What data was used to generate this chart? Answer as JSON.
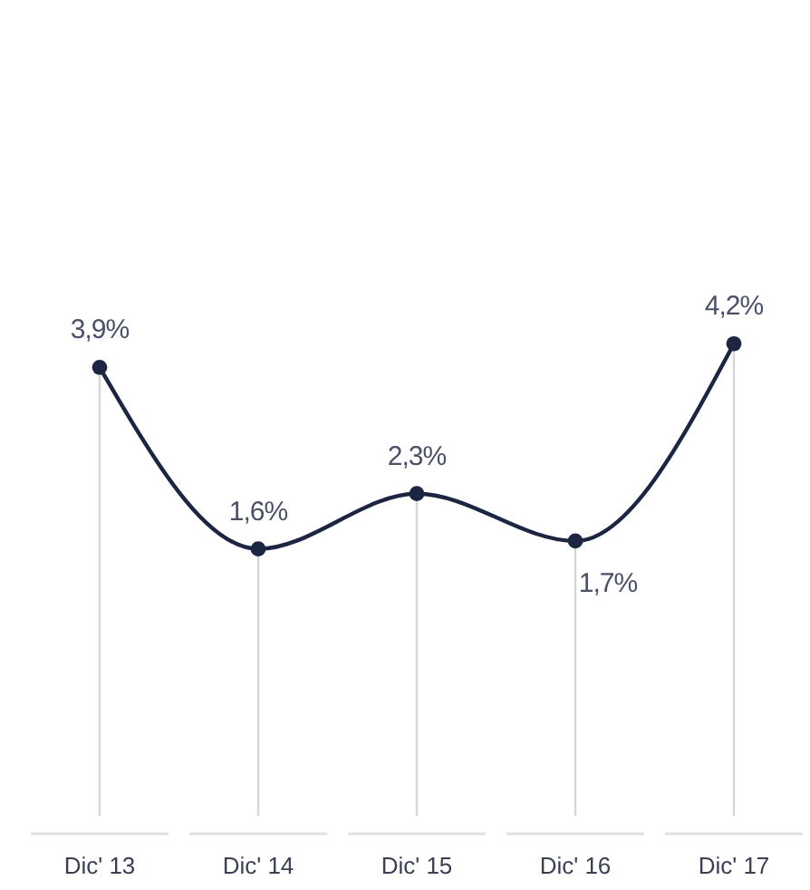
{
  "chart_data": {
    "type": "line",
    "categories": [
      "Dic' 13",
      "Dic' 14",
      "Dic' 15",
      "Dic' 16",
      "Dic' 17"
    ],
    "series": [
      {
        "color": "#1c2541",
        "values": [
          3.9,
          1.6,
          2.3,
          1.7,
          4.2
        ],
        "value_labels": [
          "3,9%",
          "1,6%",
          "2,3%",
          "1,7%",
          "4,2%"
        ]
      }
    ],
    "marker": "circle",
    "line_style": "solid",
    "grid": "x",
    "tick_labels": "x"
  }
}
